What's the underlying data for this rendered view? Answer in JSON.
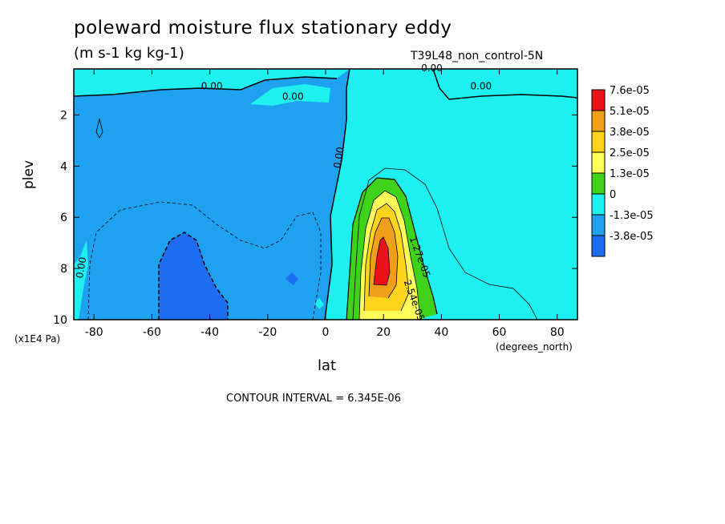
{
  "chart_data": {
    "type": "heatmap",
    "title": "poleward moisture flux stationary eddy",
    "units": "(m s-1 kg kg-1)",
    "dataset": "T39L48_non_control-5N",
    "xlabel": "lat",
    "xunit": "(degrees_north)",
    "ylabel": "plev",
    "yunit": "(x1E4 Pa)",
    "contour_interval": "CONTOUR INTERVAL = 6.345E-06",
    "xlim": [
      -87,
      87
    ],
    "ylim": [
      10,
      0.2
    ],
    "x_ticks": [
      "-80",
      "-60",
      "-40",
      "-20",
      "0",
      "20",
      "40",
      "60",
      "80"
    ],
    "x_tick_values": [
      -80,
      -60,
      -40,
      -20,
      0,
      20,
      40,
      60,
      80
    ],
    "y_ticks": [
      "2",
      "4",
      "6",
      "8",
      "10"
    ],
    "y_tick_values": [
      2,
      4,
      6,
      8,
      10
    ],
    "colorbar": {
      "labels": [
        "7.6e-05",
        "5.1e-05",
        "3.8e-05",
        "2.5e-05",
        "1.3e-05",
        "0",
        "-1.3e-05",
        "-3.8e-05"
      ],
      "colors": [
        "#e8141a",
        "#f0a018",
        "#ffd41c",
        "#ffff5a",
        "#3ed21a",
        "#1ef0f0",
        "#1ea2f0",
        "#1e6cf0"
      ]
    },
    "contour_labels": [
      {
        "text": "0.00",
        "lat": -43,
        "plev": 1.0
      },
      {
        "text": "0.00",
        "lat": -15,
        "plev": 1.4
      },
      {
        "text": "0.00",
        "lat": 33,
        "plev": 0.3
      },
      {
        "text": "0.00",
        "lat": 50,
        "plev": 1.0
      },
      {
        "text": "0.00",
        "lat": 5,
        "plev": 4.1
      },
      {
        "text": "0.00",
        "lat": -84,
        "plev": 8.4
      },
      {
        "text": "1.27e-05",
        "lat": 29,
        "plev": 6.8
      },
      {
        "text": "2.54e-05",
        "lat": 27,
        "plev": 8.5
      }
    ],
    "regions": [
      {
        "level": "-1.3e-05",
        "desc": "southern hemisphere troposphere negative region",
        "lat_range": [
          -87,
          7
        ],
        "plev_range": [
          1,
          10
        ]
      },
      {
        "level": "-3.8e-05",
        "desc": "minimum near 50S lower troposphere",
        "lat_range": [
          -58,
          -35
        ],
        "plev_range": [
          6.5,
          10
        ]
      },
      {
        "level": "7.6e-05",
        "desc": "maximum near 18N",
        "lat_range": [
          16,
          21
        ],
        "plev_range": [
          6.8,
          9
        ]
      }
    ]
  }
}
